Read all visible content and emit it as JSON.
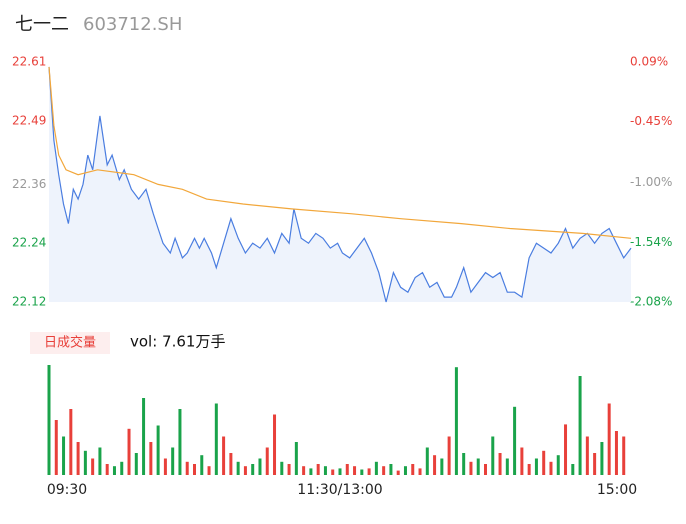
{
  "chart_data": {
    "type": "intraday",
    "title": "七一二",
    "subtitle": "603712.SH",
    "xlim": [
      0,
      240
    ],
    "xticks": [
      {
        "value": 0,
        "label": "09:30"
      },
      {
        "value": 120,
        "label": "11:30/13:00"
      },
      {
        "value": 240,
        "label": "15:00"
      }
    ],
    "ylim": [
      22.12,
      22.61
    ],
    "yticks": [
      22.12,
      22.24,
      22.36,
      22.49,
      22.61
    ],
    "y2lim": [
      -2.08,
      0.09
    ],
    "y2ticks": [
      {
        "value": -2.08,
        "label": "-2.08%"
      },
      {
        "value": -1.54,
        "label": "-1.54%"
      },
      {
        "value": -1.0,
        "label": "-1.00%"
      },
      {
        "value": -0.45,
        "label": "-0.45%"
      },
      {
        "value": 0.09,
        "label": "0.09%"
      }
    ],
    "tick_colors": {
      "up": "#e8403a",
      "flat": "#999999",
      "down": "#1aa34a"
    },
    "series": [
      {
        "kind": "price",
        "color": "#4a7de0",
        "fill": "#eef3fc",
        "x": [
          0,
          2,
          4,
          6,
          8,
          10,
          12,
          14,
          16,
          18,
          21,
          24,
          26,
          29,
          31,
          34,
          37,
          40,
          43,
          45,
          47,
          50,
          52,
          55,
          57,
          60,
          62,
          64,
          67,
          69,
          72,
          75,
          78,
          81,
          84,
          87,
          90,
          93,
          96,
          99,
          101,
          104,
          107,
          110,
          113,
          116,
          119,
          121,
          124,
          127,
          130,
          133,
          136,
          139,
          142,
          145,
          148,
          151,
          154,
          157,
          160,
          163,
          166,
          168,
          171,
          174,
          177,
          180,
          183,
          186,
          189,
          192,
          195,
          198,
          201,
          204,
          207,
          210,
          213,
          216,
          219,
          222,
          225,
          228,
          231,
          234,
          237,
          240
        ],
        "values": [
          22.6,
          22.45,
          22.38,
          22.32,
          22.28,
          22.35,
          22.33,
          22.36,
          22.42,
          22.39,
          22.5,
          22.4,
          22.42,
          22.37,
          22.39,
          22.35,
          22.33,
          22.35,
          22.3,
          22.27,
          22.24,
          22.22,
          22.25,
          22.21,
          22.22,
          22.25,
          22.23,
          22.25,
          22.22,
          22.19,
          22.24,
          22.29,
          22.25,
          22.22,
          22.24,
          22.23,
          22.25,
          22.22,
          22.26,
          22.24,
          22.31,
          22.25,
          22.24,
          22.26,
          22.25,
          22.23,
          22.24,
          22.22,
          22.21,
          22.23,
          22.25,
          22.22,
          22.18,
          22.12,
          22.18,
          22.15,
          22.14,
          22.17,
          22.18,
          22.15,
          22.16,
          22.13,
          22.13,
          22.15,
          22.19,
          22.14,
          22.16,
          22.18,
          22.17,
          22.18,
          22.14,
          22.14,
          22.13,
          22.21,
          22.24,
          22.23,
          22.22,
          22.24,
          22.27,
          22.23,
          22.25,
          22.26,
          22.24,
          22.26,
          22.27,
          22.24,
          22.21,
          22.23
        ]
      },
      {
        "kind": "average",
        "color": "#f2a73b",
        "x": [
          0,
          2,
          4,
          7,
          12,
          20,
          35,
          45,
          55,
          65,
          80,
          100,
          125,
          145,
          170,
          190,
          220,
          240
        ],
        "values": [
          22.6,
          22.48,
          22.42,
          22.39,
          22.38,
          22.39,
          22.38,
          22.36,
          22.35,
          22.33,
          22.32,
          22.31,
          22.3,
          22.29,
          22.28,
          22.27,
          22.26,
          22.25
        ]
      }
    ],
    "volume": {
      "tag": "日成交量",
      "label": "vol: 7.61万手",
      "ylim": [
        0,
        100
      ],
      "up_color": "#e8403a",
      "down_color": "#1aa34a",
      "x": [
        0,
        3,
        6,
        9,
        12,
        15,
        18,
        21,
        24,
        27,
        30,
        33,
        36,
        39,
        42,
        45,
        48,
        51,
        54,
        57,
        60,
        63,
        66,
        69,
        72,
        75,
        78,
        81,
        84,
        87,
        90,
        93,
        96,
        99,
        102,
        105,
        108,
        111,
        114,
        117,
        120,
        123,
        126,
        129,
        132,
        135,
        138,
        141,
        144,
        147,
        150,
        153,
        156,
        159,
        162,
        165,
        168,
        171,
        174,
        177,
        180,
        183,
        186,
        189,
        192,
        195,
        198,
        201,
        204,
        207,
        210,
        213,
        216,
        219,
        222,
        225,
        228,
        231,
        234,
        237
      ],
      "values": [
        100,
        50,
        35,
        60,
        30,
        22,
        15,
        25,
        10,
        8,
        12,
        42,
        20,
        70,
        30,
        45,
        15,
        25,
        60,
        12,
        10,
        18,
        8,
        65,
        35,
        20,
        12,
        8,
        10,
        15,
        25,
        55,
        12,
        10,
        30,
        8,
        6,
        10,
        8,
        5,
        6,
        10,
        8,
        5,
        6,
        12,
        8,
        10,
        4,
        8,
        10,
        6,
        25,
        18,
        15,
        35,
        98,
        20,
        12,
        15,
        10,
        35,
        20,
        15,
        62,
        25,
        10,
        15,
        22,
        12,
        18,
        46,
        10,
        90,
        35,
        20,
        30,
        65,
        40,
        35
      ],
      "up": [
        0,
        1,
        0,
        1,
        1,
        0,
        1,
        0,
        1,
        0,
        0,
        1,
        0,
        0,
        1,
        0,
        1,
        0,
        0,
        1,
        1,
        0,
        1,
        0,
        1,
        1,
        0,
        1,
        0,
        0,
        1,
        1,
        0,
        1,
        0,
        1,
        0,
        1,
        0,
        1,
        0,
        1,
        1,
        0,
        1,
        0,
        1,
        0,
        1,
        0,
        1,
        1,
        0,
        1,
        0,
        1,
        0,
        0,
        1,
        0,
        1,
        0,
        1,
        0,
        0,
        1,
        1,
        0,
        1,
        1,
        0,
        1,
        0,
        0,
        1,
        1,
        0,
        1,
        1,
        1
      ]
    }
  }
}
